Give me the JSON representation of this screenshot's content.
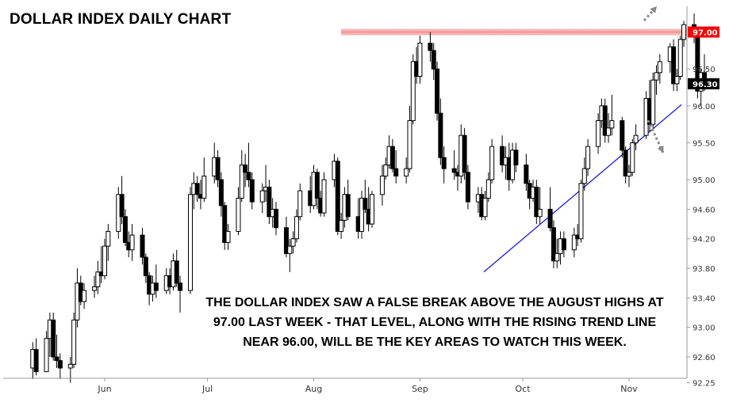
{
  "title": "DOLLAR INDEX DAILY CHART",
  "annotation": {
    "lines": [
      "THE DOLLAR INDEX SAW A FALSE BREAK ABOVE THE AUGUST HIGHS AT",
      "97.00 LAST WEEK - THAT LEVEL, ALONG WITH THE RISING TREND LINE",
      "NEAR 96.00, WILL BE THE KEY AREAS TO WATCH THIS WEEK."
    ]
  },
  "colors": {
    "resistance_band": "#f4a6a6",
    "resistance_badge": "#ff0000",
    "trend_line": "#2020cc",
    "current_badge": "#000000",
    "candle_up": "#ffffff",
    "candle_down": "#000000",
    "arrows": "#888888"
  },
  "chart_data": {
    "type": "candlestick",
    "title": "DOLLAR INDEX DAILY CHART",
    "y_ticks": [
      "92.25",
      "92.60",
      "93.00",
      "93.40",
      "93.80",
      "94.20",
      "94.60",
      "95.00",
      "95.50",
      "96.00",
      "96.50"
    ],
    "x_ticks": [
      "Jun",
      "Jul",
      "Aug",
      "Sep",
      "Oct",
      "Nov"
    ],
    "ylim": [
      92.0,
      97.4
    ],
    "resistance": {
      "value": 97.0,
      "label": "97.00"
    },
    "current_price": {
      "value": 96.3,
      "label": "96.30"
    },
    "trend_line": {
      "start": {
        "date": "2017-09-21",
        "value": 93.75
      },
      "end": {
        "date": "2017-11-08",
        "value": 96.05
      }
    },
    "candles": [
      {
        "date": "2017-05-11",
        "o": 92.45,
        "h": 92.8,
        "l": 92.3,
        "c": 92.7
      },
      {
        "date": "2017-05-12",
        "o": 92.7,
        "h": 92.85,
        "l": 92.35,
        "c": 92.4
      },
      {
        "date": "2017-05-15",
        "o": 92.4,
        "h": 92.95,
        "l": 92.4,
        "c": 92.85
      },
      {
        "date": "2017-05-16",
        "o": 92.85,
        "h": 93.2,
        "l": 92.6,
        "c": 93.1
      },
      {
        "date": "2017-05-17",
        "o": 93.1,
        "h": 93.2,
        "l": 92.55,
        "c": 92.6
      },
      {
        "date": "2017-05-18",
        "o": 92.6,
        "h": 92.9,
        "l": 92.45,
        "c": 92.55
      },
      {
        "date": "2017-05-19",
        "o": 92.55,
        "h": 92.65,
        "l": 92.3,
        "c": 92.45
      },
      {
        "date": "2017-05-22",
        "o": 92.45,
        "h": 92.6,
        "l": 92.25,
        "c": 92.5
      },
      {
        "date": "2017-05-23",
        "o": 92.5,
        "h": 93.2,
        "l": 92.45,
        "c": 93.1
      },
      {
        "date": "2017-05-24",
        "o": 93.1,
        "h": 93.8,
        "l": 93.0,
        "c": 93.6
      },
      {
        "date": "2017-05-25",
        "o": 93.6,
        "h": 93.7,
        "l": 93.3,
        "c": 93.35
      },
      {
        "date": "2017-05-26",
        "o": 93.35,
        "h": 93.6,
        "l": 93.25,
        "c": 93.5
      },
      {
        "date": "2017-05-29",
        "o": 93.5,
        "h": 93.7,
        "l": 93.4,
        "c": 93.55
      },
      {
        "date": "2017-05-30",
        "o": 93.55,
        "h": 93.9,
        "l": 93.45,
        "c": 93.75
      },
      {
        "date": "2017-05-31",
        "o": 93.75,
        "h": 94.1,
        "l": 93.6,
        "c": 93.7
      },
      {
        "date": "2017-06-01",
        "o": 93.7,
        "h": 94.2,
        "l": 93.65,
        "c": 94.1
      },
      {
        "date": "2017-06-02",
        "o": 94.1,
        "h": 94.4,
        "l": 93.9,
        "c": 94.3
      },
      {
        "date": "2017-06-05",
        "o": 94.3,
        "h": 94.9,
        "l": 94.2,
        "c": 94.8
      },
      {
        "date": "2017-06-06",
        "o": 94.8,
        "h": 95.05,
        "l": 94.4,
        "c": 94.5
      },
      {
        "date": "2017-06-07",
        "o": 94.5,
        "h": 94.6,
        "l": 94.1,
        "c": 94.15
      },
      {
        "date": "2017-06-08",
        "o": 94.15,
        "h": 94.3,
        "l": 93.95,
        "c": 94.05
      },
      {
        "date": "2017-06-09",
        "o": 94.05,
        "h": 94.4,
        "l": 93.9,
        "c": 94.25
      },
      {
        "date": "2017-06-12",
        "o": 94.25,
        "h": 94.35,
        "l": 93.85,
        "c": 93.95
      },
      {
        "date": "2017-06-13",
        "o": 93.95,
        "h": 94.0,
        "l": 93.6,
        "c": 93.7
      },
      {
        "date": "2017-06-14",
        "o": 93.7,
        "h": 93.75,
        "l": 93.3,
        "c": 93.45
      },
      {
        "date": "2017-06-15",
        "o": 93.45,
        "h": 93.7,
        "l": 93.35,
        "c": 93.6
      },
      {
        "date": "2017-06-16",
        "o": 93.6,
        "h": 93.85,
        "l": 93.4,
        "c": 93.5
      },
      {
        "date": "2017-06-19",
        "o": 93.5,
        "h": 93.8,
        "l": 93.45,
        "c": 93.7
      },
      {
        "date": "2017-06-20",
        "o": 93.7,
        "h": 93.8,
        "l": 93.45,
        "c": 93.55
      },
      {
        "date": "2017-06-21",
        "o": 93.55,
        "h": 94.0,
        "l": 93.5,
        "c": 93.9
      },
      {
        "date": "2017-06-22",
        "o": 93.9,
        "h": 94.05,
        "l": 93.55,
        "c": 93.6
      },
      {
        "date": "2017-06-23",
        "o": 93.6,
        "h": 93.7,
        "l": 93.2,
        "c": 93.5
      },
      {
        "date": "2017-06-26",
        "o": 93.5,
        "h": 94.9,
        "l": 93.45,
        "c": 94.8
      },
      {
        "date": "2017-06-27",
        "o": 94.8,
        "h": 95.1,
        "l": 94.6,
        "c": 94.95
      },
      {
        "date": "2017-06-28",
        "o": 94.95,
        "h": 95.05,
        "l": 94.7,
        "c": 94.8
      },
      {
        "date": "2017-06-29",
        "o": 94.8,
        "h": 95.0,
        "l": 94.6,
        "c": 94.75
      },
      {
        "date": "2017-06-30",
        "o": 94.75,
        "h": 95.3,
        "l": 94.7,
        "c": 95.05
      },
      {
        "date": "2017-07-03",
        "o": 95.05,
        "h": 95.5,
        "l": 94.95,
        "c": 95.3
      },
      {
        "date": "2017-07-04",
        "o": 95.3,
        "h": 95.4,
        "l": 94.9,
        "c": 95.0
      },
      {
        "date": "2017-07-05",
        "o": 95.0,
        "h": 95.1,
        "l": 94.5,
        "c": 94.65
      },
      {
        "date": "2017-07-06",
        "o": 94.65,
        "h": 94.7,
        "l": 94.05,
        "c": 94.15
      },
      {
        "date": "2017-07-07",
        "o": 94.15,
        "h": 94.4,
        "l": 94.05,
        "c": 94.3
      },
      {
        "date": "2017-07-10",
        "o": 94.3,
        "h": 94.9,
        "l": 94.25,
        "c": 94.75
      },
      {
        "date": "2017-07-11",
        "o": 94.75,
        "h": 95.4,
        "l": 94.7,
        "c": 95.2
      },
      {
        "date": "2017-07-12",
        "o": 95.2,
        "h": 95.35,
        "l": 94.9,
        "c": 95.1
      },
      {
        "date": "2017-07-13",
        "o": 95.1,
        "h": 95.5,
        "l": 94.9,
        "c": 95.0
      },
      {
        "date": "2017-07-14",
        "o": 95.0,
        "h": 95.1,
        "l": 94.6,
        "c": 94.7
      },
      {
        "date": "2017-07-17",
        "o": 94.7,
        "h": 94.95,
        "l": 94.55,
        "c": 94.85
      },
      {
        "date": "2017-07-18",
        "o": 94.85,
        "h": 95.2,
        "l": 94.7,
        "c": 94.9
      },
      {
        "date": "2017-07-19",
        "o": 94.9,
        "h": 95.0,
        "l": 94.4,
        "c": 94.5
      },
      {
        "date": "2017-07-20",
        "o": 94.5,
        "h": 94.75,
        "l": 94.35,
        "c": 94.6
      },
      {
        "date": "2017-07-21",
        "o": 94.6,
        "h": 94.7,
        "l": 94.25,
        "c": 94.35
      },
      {
        "date": "2017-07-24",
        "o": 94.35,
        "h": 94.5,
        "l": 93.95,
        "c": 94.0
      },
      {
        "date": "2017-07-25",
        "o": 94.0,
        "h": 94.2,
        "l": 93.75,
        "c": 94.1
      },
      {
        "date": "2017-07-26",
        "o": 94.1,
        "h": 94.3,
        "l": 94.0,
        "c": 94.2
      },
      {
        "date": "2017-07-27",
        "o": 94.2,
        "h": 94.6,
        "l": 94.15,
        "c": 94.5
      },
      {
        "date": "2017-07-28",
        "o": 94.5,
        "h": 94.95,
        "l": 94.45,
        "c": 94.85
      },
      {
        "date": "2017-07-31",
        "o": 94.85,
        "h": 95.05,
        "l": 94.55,
        "c": 94.65
      },
      {
        "date": "2017-08-01",
        "o": 94.65,
        "h": 95.2,
        "l": 94.6,
        "c": 95.1
      },
      {
        "date": "2017-08-02",
        "o": 95.1,
        "h": 95.15,
        "l": 94.6,
        "c": 94.75
      },
      {
        "date": "2017-08-03",
        "o": 94.75,
        "h": 94.85,
        "l": 94.5,
        "c": 94.55
      },
      {
        "date": "2017-08-04",
        "o": 94.55,
        "h": 95.1,
        "l": 94.5,
        "c": 95.0
      },
      {
        "date": "2017-08-07",
        "o": 95.0,
        "h": 95.35,
        "l": 94.9,
        "c": 95.25
      },
      {
        "date": "2017-08-08",
        "o": 95.25,
        "h": 95.3,
        "l": 94.25,
        "c": 94.3
      },
      {
        "date": "2017-08-09",
        "o": 94.3,
        "h": 94.55,
        "l": 94.2,
        "c": 94.45
      },
      {
        "date": "2017-08-10",
        "o": 94.45,
        "h": 94.9,
        "l": 94.35,
        "c": 94.8
      },
      {
        "date": "2017-08-11",
        "o": 94.8,
        "h": 95.0,
        "l": 94.45,
        "c": 94.5
      },
      {
        "date": "2017-08-14",
        "o": 94.5,
        "h": 94.75,
        "l": 94.2,
        "c": 94.3
      },
      {
        "date": "2017-08-15",
        "o": 94.3,
        "h": 94.85,
        "l": 94.2,
        "c": 94.75
      },
      {
        "date": "2017-08-16",
        "o": 94.75,
        "h": 95.0,
        "l": 94.55,
        "c": 94.6
      },
      {
        "date": "2017-08-17",
        "o": 94.6,
        "h": 94.9,
        "l": 94.3,
        "c": 94.4
      },
      {
        "date": "2017-08-18",
        "o": 94.4,
        "h": 94.85,
        "l": 94.35,
        "c": 94.8
      },
      {
        "date": "2017-08-21",
        "o": 94.8,
        "h": 95.2,
        "l": 94.65,
        "c": 95.05
      },
      {
        "date": "2017-08-22",
        "o": 95.05,
        "h": 95.3,
        "l": 95.0,
        "c": 95.2
      },
      {
        "date": "2017-08-23",
        "o": 95.2,
        "h": 95.6,
        "l": 95.15,
        "c": 95.45
      },
      {
        "date": "2017-08-24",
        "o": 95.45,
        "h": 95.55,
        "l": 95.1,
        "c": 95.15
      },
      {
        "date": "2017-08-25",
        "o": 95.15,
        "h": 95.4,
        "l": 94.95,
        "c": 95.05
      },
      {
        "date": "2017-08-28",
        "o": 95.05,
        "h": 95.3,
        "l": 94.95,
        "c": 95.15
      },
      {
        "date": "2017-08-29",
        "o": 95.15,
        "h": 96.0,
        "l": 95.1,
        "c": 95.8
      },
      {
        "date": "2017-08-30",
        "o": 95.8,
        "h": 96.7,
        "l": 95.75,
        "c": 96.6
      },
      {
        "date": "2017-08-31",
        "o": 96.6,
        "h": 96.8,
        "l": 96.3,
        "c": 96.4
      },
      {
        "date": "2017-09-01",
        "o": 96.4,
        "h": 96.95,
        "l": 96.3,
        "c": 96.85
      },
      {
        "date": "2017-09-04",
        "o": 96.85,
        "h": 97.0,
        "l": 96.6,
        "c": 96.75
      },
      {
        "date": "2017-09-05",
        "o": 96.75,
        "h": 96.85,
        "l": 96.35,
        "c": 96.5
      },
      {
        "date": "2017-09-06",
        "o": 96.5,
        "h": 96.6,
        "l": 95.8,
        "c": 95.9
      },
      {
        "date": "2017-09-07",
        "o": 95.9,
        "h": 96.1,
        "l": 95.2,
        "c": 95.3
      },
      {
        "date": "2017-09-08",
        "o": 95.3,
        "h": 95.45,
        "l": 94.95,
        "c": 95.15
      },
      {
        "date": "2017-09-11",
        "o": 95.15,
        "h": 95.4,
        "l": 95.0,
        "c": 95.1
      },
      {
        "date": "2017-09-12",
        "o": 95.1,
        "h": 95.2,
        "l": 94.85,
        "c": 95.05
      },
      {
        "date": "2017-09-13",
        "o": 95.05,
        "h": 95.75,
        "l": 94.95,
        "c": 95.6
      },
      {
        "date": "2017-09-14",
        "o": 95.6,
        "h": 95.7,
        "l": 95.0,
        "c": 95.1
      },
      {
        "date": "2017-09-15",
        "o": 95.1,
        "h": 95.2,
        "l": 94.6,
        "c": 94.7
      },
      {
        "date": "2017-09-18",
        "o": 94.7,
        "h": 94.9,
        "l": 94.55,
        "c": 94.8
      },
      {
        "date": "2017-09-19",
        "o": 94.8,
        "h": 94.9,
        "l": 94.45,
        "c": 94.5
      },
      {
        "date": "2017-09-20",
        "o": 94.5,
        "h": 94.85,
        "l": 94.45,
        "c": 94.75
      },
      {
        "date": "2017-09-21",
        "o": 94.75,
        "h": 95.1,
        "l": 94.7,
        "c": 95.0
      },
      {
        "date": "2017-09-22",
        "o": 95.0,
        "h": 95.55,
        "l": 94.95,
        "c": 95.45
      },
      {
        "date": "2017-09-25",
        "o": 95.45,
        "h": 95.6,
        "l": 95.1,
        "c": 95.2
      },
      {
        "date": "2017-09-26",
        "o": 95.2,
        "h": 95.45,
        "l": 95.0,
        "c": 95.3
      },
      {
        "date": "2017-09-27",
        "o": 95.3,
        "h": 95.5,
        "l": 94.85,
        "c": 95.0
      },
      {
        "date": "2017-09-28",
        "o": 95.0,
        "h": 95.5,
        "l": 94.95,
        "c": 95.4
      },
      {
        "date": "2017-09-29",
        "o": 95.4,
        "h": 95.5,
        "l": 95.1,
        "c": 95.2
      },
      {
        "date": "2017-10-02",
        "o": 95.2,
        "h": 95.35,
        "l": 94.85,
        "c": 94.95
      },
      {
        "date": "2017-10-03",
        "o": 94.95,
        "h": 95.0,
        "l": 94.6,
        "c": 94.75
      },
      {
        "date": "2017-10-04",
        "o": 94.75,
        "h": 95.0,
        "l": 94.7,
        "c": 94.9
      },
      {
        "date": "2017-10-05",
        "o": 94.9,
        "h": 95.0,
        "l": 94.4,
        "c": 94.5
      },
      {
        "date": "2017-10-06",
        "o": 94.5,
        "h": 94.9,
        "l": 94.4,
        "c": 94.6
      },
      {
        "date": "2017-10-09",
        "o": 94.6,
        "h": 94.9,
        "l": 94.3,
        "c": 94.35
      },
      {
        "date": "2017-10-10",
        "o": 94.35,
        "h": 94.45,
        "l": 93.8,
        "c": 93.9
      },
      {
        "date": "2017-10-11",
        "o": 93.9,
        "h": 94.2,
        "l": 93.8,
        "c": 94.0
      },
      {
        "date": "2017-10-12",
        "o": 94.0,
        "h": 94.3,
        "l": 93.85,
        "c": 94.2
      },
      {
        "date": "2017-10-13",
        "o": 94.2,
        "h": 94.3,
        "l": 93.95,
        "c": 94.05
      },
      {
        "date": "2017-10-16",
        "o": 94.05,
        "h": 94.35,
        "l": 93.95,
        "c": 94.25
      },
      {
        "date": "2017-10-17",
        "o": 94.25,
        "h": 94.4,
        "l": 94.1,
        "c": 94.2
      },
      {
        "date": "2017-10-18",
        "o": 94.2,
        "h": 95.0,
        "l": 94.15,
        "c": 94.95
      },
      {
        "date": "2017-10-19",
        "o": 94.95,
        "h": 95.3,
        "l": 94.85,
        "c": 95.15
      },
      {
        "date": "2017-10-20",
        "o": 95.15,
        "h": 95.55,
        "l": 95.05,
        "c": 95.45
      },
      {
        "date": "2017-10-23",
        "o": 95.45,
        "h": 95.9,
        "l": 95.35,
        "c": 95.8
      },
      {
        "date": "2017-10-24",
        "o": 95.8,
        "h": 96.1,
        "l": 95.7,
        "c": 96.0
      },
      {
        "date": "2017-10-25",
        "o": 96.0,
        "h": 96.1,
        "l": 95.5,
        "c": 95.6
      },
      {
        "date": "2017-10-26",
        "o": 95.6,
        "h": 95.9,
        "l": 95.5,
        "c": 95.7
      },
      {
        "date": "2017-10-27",
        "o": 95.7,
        "h": 96.15,
        "l": 95.6,
        "c": 95.8
      },
      {
        "date": "2017-10-30",
        "o": 95.8,
        "h": 95.85,
        "l": 95.3,
        "c": 95.4
      },
      {
        "date": "2017-10-31",
        "o": 95.4,
        "h": 95.45,
        "l": 94.95,
        "c": 95.05
      },
      {
        "date": "2017-11-01",
        "o": 95.05,
        "h": 95.2,
        "l": 94.9,
        "c": 95.1
      },
      {
        "date": "2017-11-02",
        "o": 95.1,
        "h": 95.55,
        "l": 95.05,
        "c": 95.5
      },
      {
        "date": "2017-11-03",
        "o": 95.5,
        "h": 95.75,
        "l": 95.4,
        "c": 95.6
      },
      {
        "date": "2017-11-06",
        "o": 95.6,
        "h": 96.2,
        "l": 95.55,
        "c": 96.1
      },
      {
        "date": "2017-11-07",
        "o": 96.1,
        "h": 96.35,
        "l": 95.65,
        "c": 95.75
      },
      {
        "date": "2017-11-08",
        "o": 95.75,
        "h": 96.45,
        "l": 95.7,
        "c": 96.35
      },
      {
        "date": "2017-11-09",
        "o": 96.35,
        "h": 96.55,
        "l": 96.15,
        "c": 96.45
      },
      {
        "date": "2017-11-10",
        "o": 96.45,
        "h": 96.7,
        "l": 96.3,
        "c": 96.6
      },
      {
        "date": "2017-11-13",
        "o": 96.6,
        "h": 96.85,
        "l": 96.45,
        "c": 96.8
      },
      {
        "date": "2017-11-14",
        "o": 96.8,
        "h": 96.9,
        "l": 96.2,
        "c": 96.3
      },
      {
        "date": "2017-11-15",
        "o": 96.3,
        "h": 96.5,
        "l": 96.2,
        "c": 96.4
      },
      {
        "date": "2017-11-16",
        "o": 96.4,
        "h": 96.95,
        "l": 96.35,
        "c": 96.9
      },
      {
        "date": "2017-11-17",
        "o": 96.9,
        "h": 97.15,
        "l": 96.8,
        "c": 97.1
      },
      {
        "date": "2017-11-20",
        "o": 97.1,
        "h": 97.25,
        "l": 96.85,
        "c": 96.95
      },
      {
        "date": "2017-11-21",
        "o": 96.95,
        "h": 97.05,
        "l": 96.1,
        "c": 96.2
      },
      {
        "date": "2017-11-22",
        "o": 96.2,
        "h": 96.5,
        "l": 96.0,
        "c": 96.45
      },
      {
        "date": "2017-11-23",
        "o": 96.45,
        "h": 96.7,
        "l": 96.2,
        "c": 96.3
      }
    ]
  }
}
